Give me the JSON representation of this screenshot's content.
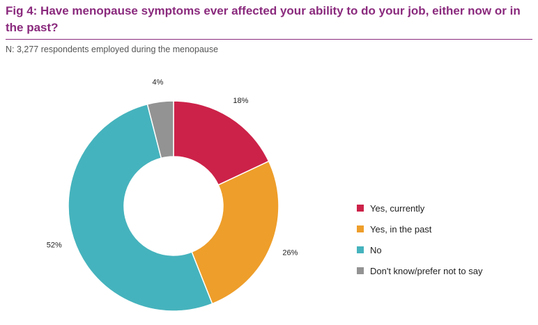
{
  "title": "Fig 4: Have menopause symptoms ever affected your ability to do your job, either now or in the past?",
  "subtitle": "N: 3,277 respondents employed during the menopause",
  "chart_data": {
    "type": "pie",
    "variant": "donut",
    "categories": [
      "Yes, currently",
      "Yes, in the past",
      "No",
      "Don't know/prefer not to say"
    ],
    "values": [
      18,
      26,
      52,
      4
    ],
    "value_labels": [
      "18%",
      "26%",
      "52%",
      "4%"
    ],
    "colors": [
      "#cc2249",
      "#ee9e2a",
      "#45b3bd",
      "#939393"
    ],
    "legend_position": "right"
  }
}
